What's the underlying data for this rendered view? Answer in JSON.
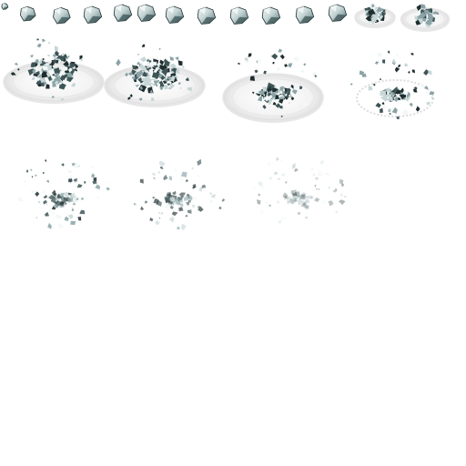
{
  "sprite_sheet": {
    "background_color": "#ffffff",
    "rock_colors": {
      "highlight": "#f2f7f7",
      "light": "#c7d6d6",
      "mid": "#8aa3a6",
      "dark": "#3e5557",
      "shadow": "#1f2d2f"
    },
    "plate_colors": {
      "rim": "#e6e6e6",
      "fill": "#f5f5f5",
      "shadow": "#d8d8d8"
    },
    "frames": [
      {
        "name": "frame-01",
        "kind": "rock",
        "scale": 0.35
      },
      {
        "name": "frame-02",
        "kind": "rock",
        "scale": 0.85
      },
      {
        "name": "frame-03",
        "kind": "rock",
        "scale": 0.95
      },
      {
        "name": "frame-04",
        "kind": "rock",
        "scale": 1.0
      },
      {
        "name": "frame-05",
        "kind": "rock",
        "scale": 1.0
      },
      {
        "name": "frame-06",
        "kind": "rock",
        "scale": 1.0
      },
      {
        "name": "frame-07",
        "kind": "rock",
        "scale": 1.0
      },
      {
        "name": "frame-08",
        "kind": "rock",
        "scale": 1.0
      },
      {
        "name": "frame-09",
        "kind": "rock",
        "scale": 1.0
      },
      {
        "name": "frame-10",
        "kind": "rock",
        "scale": 1.0
      },
      {
        "name": "frame-11",
        "kind": "rock",
        "scale": 1.0
      },
      {
        "name": "frame-12",
        "kind": "rock",
        "scale": 1.0
      },
      {
        "name": "frame-13",
        "kind": "pile-on-plate",
        "scale": 1.0
      },
      {
        "name": "frame-14",
        "kind": "pile-on-plate",
        "scale": 1.2
      },
      {
        "name": "frame-15",
        "kind": "pile-on-plate",
        "scale": 1.0
      },
      {
        "name": "frame-16",
        "kind": "pile-on-plate",
        "scale": 1.0
      },
      {
        "name": "frame-17",
        "kind": "explosion-on-plate",
        "scale": 1.0
      },
      {
        "name": "frame-18",
        "kind": "explosion-ring",
        "scale": 1.0
      },
      {
        "name": "frame-19",
        "kind": "explosion-fading",
        "opacity": 0.85
      },
      {
        "name": "frame-20",
        "kind": "explosion-fading",
        "opacity": 0.65
      },
      {
        "name": "frame-21",
        "kind": "explosion-fading",
        "opacity": 0.35
      }
    ]
  }
}
